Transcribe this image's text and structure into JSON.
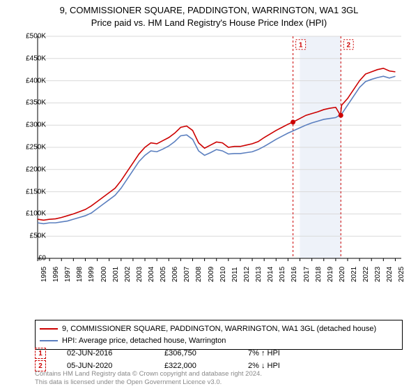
{
  "title_line1": "9, COMMISSIONER SQUARE, PADDINGTON, WARRINGTON, WA1 3GL",
  "title_line2": "Price paid vs. HM Land Registry's House Price Index (HPI)",
  "chart": {
    "type": "line",
    "background_color": "#ffffff",
    "grid_color": "#d9d9d9",
    "axis_color": "#000000",
    "xlim": [
      1995,
      2025.5
    ],
    "ylim": [
      0,
      500000
    ],
    "y_ticks": [
      0,
      50000,
      100000,
      150000,
      200000,
      250000,
      300000,
      350000,
      400000,
      450000,
      500000
    ],
    "y_tick_labels": [
      "£0",
      "£50K",
      "£100K",
      "£150K",
      "£200K",
      "£250K",
      "£300K",
      "£350K",
      "£400K",
      "£450K",
      "£500K"
    ],
    "x_ticks": [
      1995,
      1996,
      1997,
      1998,
      1999,
      2000,
      2001,
      2002,
      2003,
      2004,
      2005,
      2006,
      2007,
      2008,
      2009,
      2010,
      2011,
      2012,
      2013,
      2014,
      2015,
      2016,
      2017,
      2018,
      2019,
      2020,
      2021,
      2022,
      2023,
      2024,
      2025
    ],
    "label_fontsize": 10,
    "line_width": 1.6,
    "shaded_region": {
      "x_start": 2017.0,
      "x_end": 2020.45,
      "fill": "#eef2f9"
    },
    "marker_lines": [
      {
        "x": 2016.42,
        "color": "#cc0000",
        "dash": "3,3",
        "badge": "1",
        "badge_y": 480000
      },
      {
        "x": 2020.43,
        "color": "#cc0000",
        "dash": "3,3",
        "badge": "2",
        "badge_y": 480000
      }
    ],
    "marker_points": [
      {
        "x": 2016.42,
        "y": 306750,
        "color": "#cc0000"
      },
      {
        "x": 2020.43,
        "y": 322000,
        "color": "#cc0000"
      }
    ],
    "series": [
      {
        "name": "price_paid",
        "color": "#cc0000",
        "points": [
          [
            1995.0,
            88000
          ],
          [
            1995.5,
            86000
          ],
          [
            1996.0,
            88000
          ],
          [
            1996.5,
            89000
          ],
          [
            1997.0,
            92000
          ],
          [
            1997.5,
            96000
          ],
          [
            1998.0,
            100000
          ],
          [
            1998.5,
            105000
          ],
          [
            1999.0,
            110000
          ],
          [
            1999.5,
            118000
          ],
          [
            2000.0,
            128000
          ],
          [
            2000.5,
            138000
          ],
          [
            2001.0,
            148000
          ],
          [
            2001.5,
            158000
          ],
          [
            2002.0,
            175000
          ],
          [
            2002.5,
            195000
          ],
          [
            2003.0,
            215000
          ],
          [
            2003.5,
            235000
          ],
          [
            2004.0,
            250000
          ],
          [
            2004.5,
            260000
          ],
          [
            2005.0,
            258000
          ],
          [
            2005.5,
            265000
          ],
          [
            2006.0,
            272000
          ],
          [
            2006.5,
            282000
          ],
          [
            2007.0,
            295000
          ],
          [
            2007.5,
            298000
          ],
          [
            2008.0,
            288000
          ],
          [
            2008.5,
            260000
          ],
          [
            2009.0,
            248000
          ],
          [
            2009.5,
            255000
          ],
          [
            2010.0,
            262000
          ],
          [
            2010.5,
            260000
          ],
          [
            2011.0,
            250000
          ],
          [
            2011.5,
            252000
          ],
          [
            2012.0,
            252000
          ],
          [
            2012.5,
            255000
          ],
          [
            2013.0,
            258000
          ],
          [
            2013.5,
            263000
          ],
          [
            2014.0,
            272000
          ],
          [
            2014.5,
            280000
          ],
          [
            2015.0,
            288000
          ],
          [
            2015.5,
            295000
          ],
          [
            2016.0,
            302000
          ],
          [
            2016.5,
            308000
          ],
          [
            2017.0,
            315000
          ],
          [
            2017.5,
            322000
          ],
          [
            2018.0,
            326000
          ],
          [
            2018.5,
            330000
          ],
          [
            2019.0,
            335000
          ],
          [
            2019.5,
            338000
          ],
          [
            2020.0,
            340000
          ],
          [
            2020.4,
            322000
          ],
          [
            2020.5,
            345000
          ],
          [
            2021.0,
            360000
          ],
          [
            2021.5,
            380000
          ],
          [
            2022.0,
            400000
          ],
          [
            2022.5,
            415000
          ],
          [
            2023.0,
            420000
          ],
          [
            2023.5,
            425000
          ],
          [
            2024.0,
            428000
          ],
          [
            2024.5,
            422000
          ],
          [
            2025.0,
            420000
          ]
        ]
      },
      {
        "name": "hpi",
        "color": "#5b7fbf",
        "points": [
          [
            1995.0,
            80000
          ],
          [
            1995.5,
            78000
          ],
          [
            1996.0,
            80000
          ],
          [
            1996.5,
            80000
          ],
          [
            1997.0,
            82000
          ],
          [
            1997.5,
            84000
          ],
          [
            1998.0,
            88000
          ],
          [
            1998.5,
            92000
          ],
          [
            1999.0,
            96000
          ],
          [
            1999.5,
            102000
          ],
          [
            2000.0,
            112000
          ],
          [
            2000.5,
            122000
          ],
          [
            2001.0,
            132000
          ],
          [
            2001.5,
            142000
          ],
          [
            2002.0,
            158000
          ],
          [
            2002.5,
            178000
          ],
          [
            2003.0,
            198000
          ],
          [
            2003.5,
            218000
          ],
          [
            2004.0,
            232000
          ],
          [
            2004.5,
            242000
          ],
          [
            2005.0,
            240000
          ],
          [
            2005.5,
            246000
          ],
          [
            2006.0,
            253000
          ],
          [
            2006.5,
            263000
          ],
          [
            2007.0,
            276000
          ],
          [
            2007.5,
            278000
          ],
          [
            2008.0,
            268000
          ],
          [
            2008.5,
            242000
          ],
          [
            2009.0,
            232000
          ],
          [
            2009.5,
            238000
          ],
          [
            2010.0,
            245000
          ],
          [
            2010.5,
            242000
          ],
          [
            2011.0,
            235000
          ],
          [
            2011.5,
            236000
          ],
          [
            2012.0,
            236000
          ],
          [
            2012.5,
            238000
          ],
          [
            2013.0,
            240000
          ],
          [
            2013.5,
            245000
          ],
          [
            2014.0,
            252000
          ],
          [
            2014.5,
            260000
          ],
          [
            2015.0,
            268000
          ],
          [
            2015.5,
            275000
          ],
          [
            2016.0,
            282000
          ],
          [
            2016.5,
            288000
          ],
          [
            2017.0,
            294000
          ],
          [
            2017.5,
            300000
          ],
          [
            2018.0,
            305000
          ],
          [
            2018.5,
            309000
          ],
          [
            2019.0,
            313000
          ],
          [
            2019.5,
            315000
          ],
          [
            2020.0,
            317000
          ],
          [
            2020.5,
            325000
          ],
          [
            2021.0,
            345000
          ],
          [
            2021.5,
            365000
          ],
          [
            2022.0,
            385000
          ],
          [
            2022.5,
            398000
          ],
          [
            2023.0,
            403000
          ],
          [
            2023.5,
            407000
          ],
          [
            2024.0,
            410000
          ],
          [
            2024.5,
            406000
          ],
          [
            2025.0,
            410000
          ]
        ]
      }
    ]
  },
  "legend": {
    "items": [
      {
        "color": "#cc0000",
        "label": "9, COMMISSIONER SQUARE, PADDINGTON, WARRINGTON, WA1 3GL (detached house)"
      },
      {
        "color": "#5b7fbf",
        "label": "HPI: Average price, detached house, Warrington"
      }
    ]
  },
  "transactions": [
    {
      "badge": "1",
      "date": "02-JUN-2016",
      "price": "£306,750",
      "pct": "7% ↑ HPI"
    },
    {
      "badge": "2",
      "date": "05-JUN-2020",
      "price": "£322,000",
      "pct": "2% ↓ HPI"
    }
  ],
  "footer_line1": "Contains HM Land Registry data © Crown copyright and database right 2024.",
  "footer_line2": "This data is licensed under the Open Government Licence v3.0."
}
